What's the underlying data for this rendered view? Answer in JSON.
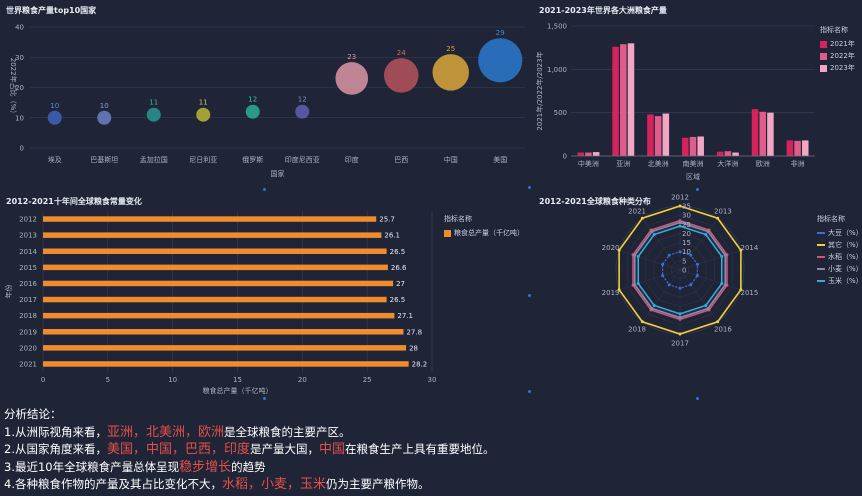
{
  "panels": {
    "bubble": {
      "title": "世界粮食产量top10国家"
    },
    "continent": {
      "title": "2021-2023年世界各大洲粮食产量"
    },
    "decade": {
      "title": "2012-2021十年间全球粮食常量变化"
    },
    "radar": {
      "title": "2012-2021全球粮食种类分布"
    }
  },
  "chart_data": [
    {
      "id": "bubble",
      "type": "scatter",
      "title": "世界粮食产量top10国家",
      "xlabel": "国家",
      "ylabel": "2022年占比（%）",
      "ylim": [
        0,
        40
      ],
      "yticks": [
        0,
        10,
        20,
        30,
        40
      ],
      "categories": [
        "埃及",
        "巴基斯坦",
        "孟加拉国",
        "尼日利亚",
        "俄罗斯",
        "印度尼西亚",
        "印度",
        "巴西",
        "中国",
        "美国"
      ],
      "values": [
        10,
        10,
        11,
        11,
        12,
        12,
        23,
        24,
        25,
        29
      ],
      "colors": [
        "#3d5bb0",
        "#6377b5",
        "#2a8a8a",
        "#a8a838",
        "#2aa08a",
        "#5a5aa8",
        "#c98a9a",
        "#a84e58",
        "#c89a3a",
        "#2a70c0"
      ],
      "label_colors": [
        "#4f8fd8",
        "#8fa0c8",
        "#3fb0a8",
        "#c8c860",
        "#3fc0a8",
        "#7e86c8",
        "#d89aa8",
        "#d86a62",
        "#e0a040",
        "#3a8ce0"
      ]
    },
    {
      "id": "continent",
      "type": "bar",
      "title": "2021-2023年世界各大洲粮食产量",
      "xlabel": "区域",
      "ylabel": "2021年/2022年/2023年",
      "ylim": [
        0,
        1500
      ],
      "yticks": [
        0,
        500,
        1000,
        1500
      ],
      "ytick_labels": [
        "0",
        "500",
        "1,000",
        "1,500"
      ],
      "categories": [
        "中美洲",
        "亚洲",
        "北美洲",
        "南美洲",
        "大洋洲",
        "欧洲",
        "非洲"
      ],
      "series": [
        {
          "name": "2021年",
          "values": [
            40,
            1260,
            480,
            210,
            50,
            540,
            180
          ],
          "color": "#d6235e"
        },
        {
          "name": "2022年",
          "values": [
            40,
            1290,
            460,
            220,
            55,
            510,
            175
          ],
          "color": "#e05c8c"
        },
        {
          "name": "2023年",
          "values": [
            45,
            1300,
            490,
            225,
            40,
            500,
            180
          ],
          "color": "#f2a6c4"
        }
      ],
      "legend_title": "指标名称"
    },
    {
      "id": "decade",
      "type": "bar",
      "orientation": "horizontal",
      "title": "2012-2021十年间全球粮食常量变化",
      "xlabel": "粮食总产量（千亿吨）",
      "ylabel": "年份",
      "xlim": [
        0,
        30
      ],
      "xticks": [
        0,
        5,
        10,
        15,
        20,
        25,
        30
      ],
      "categories": [
        "2012",
        "2013",
        "2014",
        "2015",
        "2016",
        "2017",
        "2018",
        "2019",
        "2020",
        "2021"
      ],
      "values": [
        25.7,
        26.1,
        26.5,
        26.6,
        27,
        26.5,
        27.1,
        27.8,
        28,
        28.2
      ],
      "series_name": "粮食总产量（千亿吨）",
      "color": "#f08c2c",
      "legend_title": "指标名称"
    },
    {
      "id": "radar",
      "type": "radar",
      "title": "2012-2021全球粮食种类分布",
      "axes": [
        "2012",
        "2013",
        "2014",
        "2015",
        "2016",
        "2017",
        "2018",
        "2019",
        "2020",
        "2021"
      ],
      "rmax": 35,
      "rticks": [
        0,
        5,
        10,
        15,
        20,
        25,
        30,
        35
      ],
      "rtick_labels": [
        "0",
        "5",
        "10",
        "15",
        "20",
        "25",
        "30",
        "35"
      ],
      "series": [
        {
          "name": "大豆（%）",
          "values": [
            10,
            10,
            10,
            10,
            10,
            10,
            10,
            10,
            10,
            10
          ],
          "color": "#3a6fd8",
          "dashed": true
        },
        {
          "name": "其它（%）",
          "values": [
            35,
            35,
            35,
            35,
            35,
            35,
            35,
            35,
            35,
            35
          ],
          "color": "#f3cd3a"
        },
        {
          "name": "水稻（%）",
          "values": [
            27,
            27,
            27,
            27,
            27,
            27,
            27,
            27,
            27,
            27
          ],
          "color": "#c85a78"
        },
        {
          "name": "小麦（%）",
          "values": [
            26,
            26,
            26,
            26,
            26,
            26,
            26,
            26,
            26,
            26
          ],
          "color": "#8a8ab0"
        },
        {
          "name": "玉米（%）",
          "values": [
            24,
            24,
            24,
            24,
            24,
            24,
            24,
            24,
            24,
            24
          ],
          "color": "#3aa8d8"
        }
      ],
      "legend_title": "指标名称"
    }
  ],
  "conclusion": {
    "heading": "分析结论：",
    "lines": [
      [
        {
          "t": "1.从洲际视角来看，"
        },
        {
          "t": "亚洲，北美洲，欧洲",
          "h": true
        },
        {
          "t": "是全球粮食的主要产区。"
        }
      ],
      [
        {
          "t": "2.从国家角度来看，"
        },
        {
          "t": "美国，中国，巴西，印度",
          "h": true
        },
        {
          "t": "是产量大国，"
        },
        {
          "t": "中国",
          "h": true
        },
        {
          "t": "在粮食生产上具有重要地位。"
        }
      ],
      [
        {
          "t": "3.最近10年全球粮食产量总体呈现"
        },
        {
          "t": "稳步增长",
          "h": true
        },
        {
          "t": "的趋势"
        }
      ],
      [
        {
          "t": "4.各种粮食作物的产量及其占比变化不大，"
        },
        {
          "t": "水稻，小麦，玉米",
          "h": true
        },
        {
          "t": "仍为主要产粮作物。"
        }
      ]
    ]
  }
}
